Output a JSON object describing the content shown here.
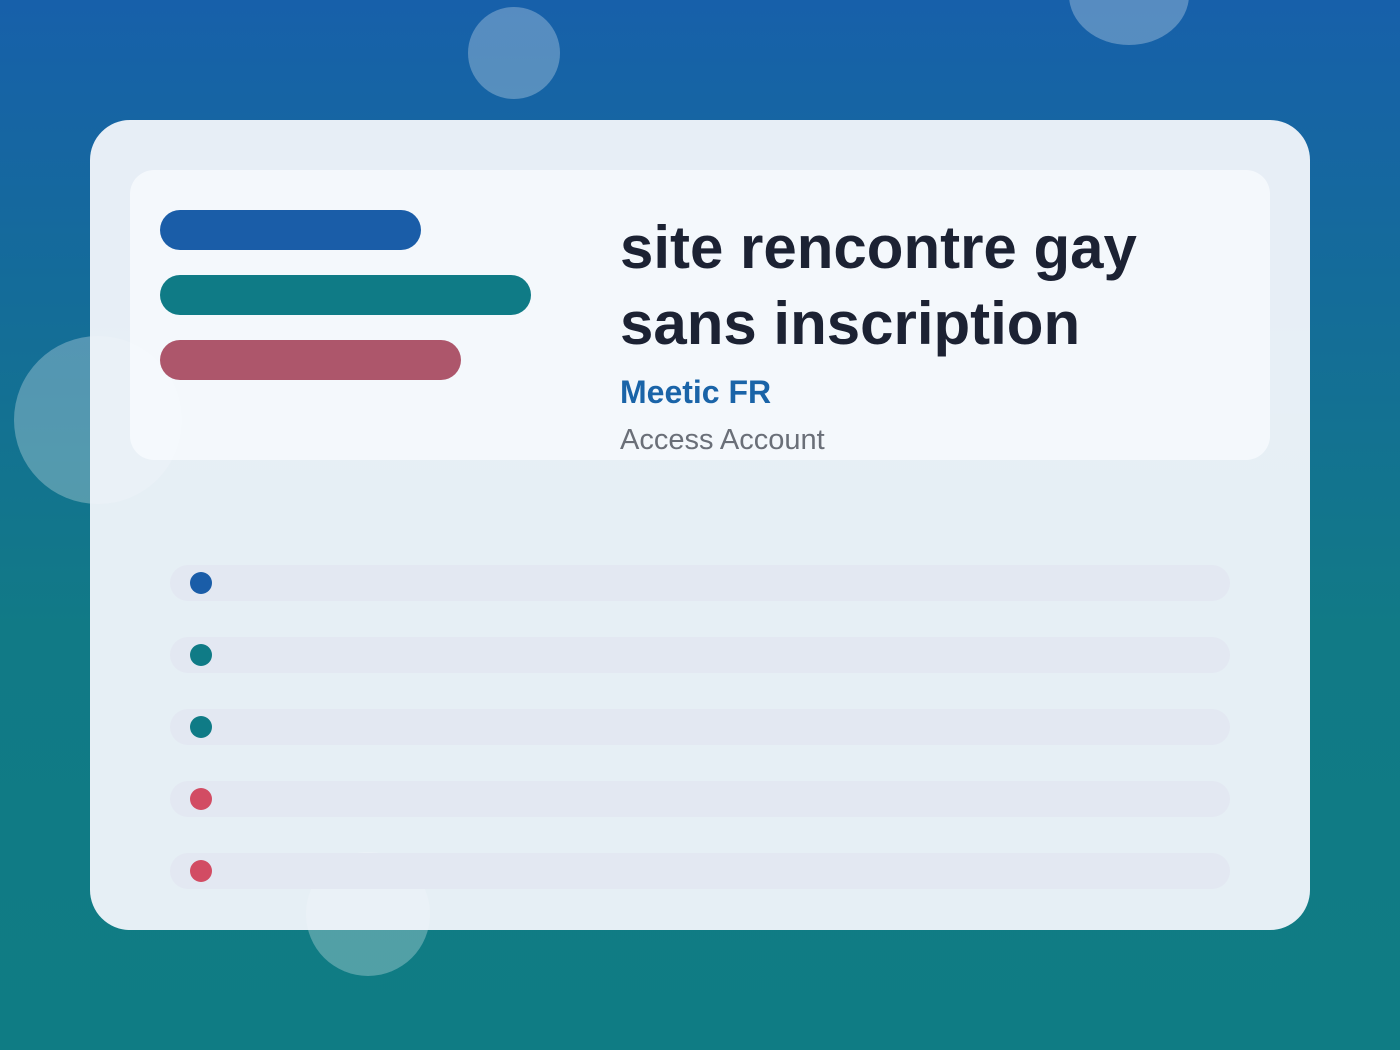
{
  "header": {
    "title": "site rencontre gay sans inscription",
    "brand": "Meetic FR",
    "subtitle": "Access Account"
  }
}
